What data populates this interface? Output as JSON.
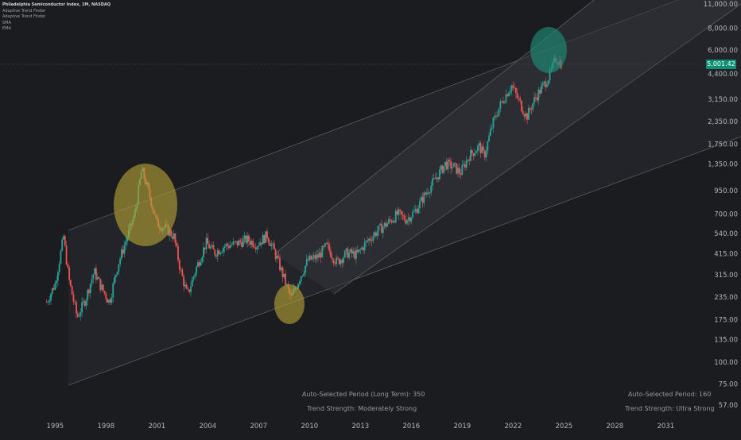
{
  "legend": {
    "title": "Philadelphia Semiconductor Index, 1M, NASDAQ",
    "items": [
      "Adaptive Trend Finder",
      "Adaptive Trend Finder",
      "SMA",
      "EMA"
    ]
  },
  "price_axis": {
    "labels": [
      "11,000.00",
      "8,000.00",
      "6,000.00",
      "4,400.00",
      "3,150.00",
      "2,350.00",
      "1,750.00",
      "1,350.00",
      "950.00",
      "700.00",
      "540.00",
      "415.00",
      "315.00",
      "235.00",
      "175.00",
      "135.00",
      "100.00",
      "75.00",
      "57.00"
    ],
    "last_price": "5,001.42"
  },
  "time_axis": {
    "labels": [
      "1995",
      "1998",
      "2001",
      "2004",
      "2007",
      "2010",
      "2013",
      "2016",
      "2019",
      "2022",
      "2025",
      "2028",
      "2031"
    ]
  },
  "info_long": {
    "period": "Auto-Selected Period (Long Term): 350",
    "strength": "Trend Strength: Moderately Strong"
  },
  "info_short": {
    "period": "Auto-Selected Period: 160",
    "strength": "Trend Strength: Ultra Strong"
  },
  "colors": {
    "background": "#1b1c20",
    "up": "#26a69a",
    "down": "#ef5350",
    "badge": "#0e8f74",
    "highlight_yellow": "#b5a333",
    "highlight_teal": "#1f8f7a"
  },
  "chart_data": {
    "type": "candlestick",
    "series_description": "monthly close, log scale",
    "x": [
      1994.5,
      1995.0,
      1995.5,
      1995.8,
      1996.3,
      1996.8,
      1997.3,
      1997.7,
      1998.2,
      1998.7,
      1999.2,
      1999.7,
      2000.1,
      2000.3,
      2000.7,
      2001.0,
      2001.5,
      2002.0,
      2002.4,
      2002.8,
      2003.3,
      2003.9,
      2004.4,
      2005.0,
      2005.6,
      2006.3,
      2006.9,
      2007.5,
      2008.0,
      2008.5,
      2008.9,
      2009.4,
      2009.9,
      2010.5,
      2011.0,
      2011.6,
      2012.2,
      2012.8,
      2013.4,
      2014.0,
      2014.6,
      2015.2,
      2015.7,
      2016.2,
      2016.8,
      2017.4,
      2018.0,
      2018.5,
      2018.9,
      2019.4,
      2020.0,
      2020.3,
      2020.8,
      2021.3,
      2021.9,
      2022.4,
      2022.8,
      2023.3,
      2023.8,
      2024.2,
      2024.5,
      2024.9
    ],
    "values": [
      220,
      280,
      520,
      300,
      180,
      230,
      330,
      270,
      220,
      360,
      500,
      700,
      1250,
      1100,
      800,
      620,
      580,
      520,
      330,
      240,
      340,
      480,
      420,
      460,
      470,
      500,
      470,
      530,
      410,
      300,
      230,
      300,
      380,
      400,
      460,
      370,
      420,
      410,
      490,
      560,
      620,
      700,
      650,
      720,
      900,
      1100,
      1350,
      1300,
      1200,
      1500,
      1700,
      1500,
      2300,
      3000,
      3800,
      3000,
      2500,
      3200,
      3800,
      4400,
      5400,
      5001
    ],
    "ylim": [
      57,
      11000
    ],
    "xlim": [
      1994,
      2033
    ]
  }
}
